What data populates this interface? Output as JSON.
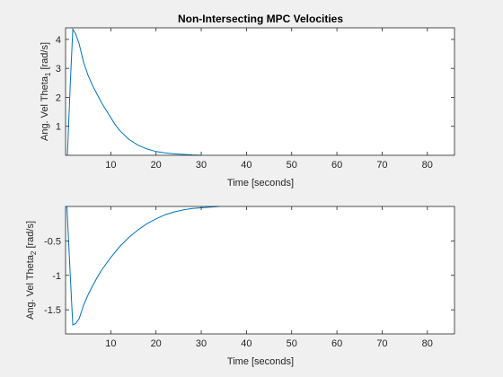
{
  "figure": {
    "background": "#f0f0f0",
    "axes_background": "#ffffff",
    "axis_color": "#262626",
    "line_color": "#0072bd"
  },
  "chart_data": [
    {
      "type": "line",
      "title": "Non-Intersecting MPC Velocities",
      "ylabel_main": "Ang. Vel Theta",
      "ylabel_sub": "1",
      "ylabel_unit": " [rad/s]",
      "xlabel": "Time [seconds]",
      "xlim": [
        0,
        86
      ],
      "ylim": [
        0,
        4.4
      ],
      "xticks": [
        10,
        20,
        30,
        40,
        50,
        60,
        70,
        80
      ],
      "xtick_labels": [
        "10",
        "20",
        "30",
        "40",
        "50",
        "60",
        "70",
        "80"
      ],
      "yticks": [
        1,
        2,
        3,
        4
      ],
      "ytick_labels": [
        "1",
        "2",
        "3",
        "4"
      ],
      "grid": false,
      "series": [
        {
          "color": "#0072bd",
          "x": [
            0.4,
            1.0,
            1.6,
            2.2,
            3.0,
            4.0,
            5.0,
            6.0,
            7.0,
            8.0,
            9.0,
            10.0,
            11.0,
            12.0,
            14.0,
            16.0,
            18.0,
            20.0,
            22.0,
            24.0,
            26.0,
            28.0,
            30.0
          ],
          "y": [
            0.0,
            2.3,
            4.35,
            4.2,
            3.85,
            3.2,
            2.75,
            2.4,
            2.1,
            1.8,
            1.55,
            1.3,
            1.05,
            0.85,
            0.55,
            0.35,
            0.22,
            0.13,
            0.08,
            0.05,
            0.03,
            0.01,
            0.0
          ]
        }
      ]
    },
    {
      "type": "line",
      "title": "",
      "ylabel_main": "Ang. Vel Theta",
      "ylabel_sub": "2",
      "ylabel_unit": " [rad/s]",
      "xlabel": "Time [seconds]",
      "xlim": [
        0,
        86
      ],
      "ylim": [
        -1.85,
        0
      ],
      "xticks": [
        10,
        20,
        30,
        40,
        50,
        60,
        70,
        80
      ],
      "xtick_labels": [
        "10",
        "20",
        "30",
        "40",
        "50",
        "60",
        "70",
        "80"
      ],
      "yticks": [
        -1.5,
        -1,
        -0.5
      ],
      "ytick_labels": [
        "-1.5",
        "-1",
        "-0.5"
      ],
      "grid": false,
      "series": [
        {
          "color": "#0072bd",
          "x": [
            0.3,
            1.0,
            1.6,
            2.2,
            3.0,
            4.0,
            5.0,
            6.0,
            7.0,
            8.0,
            10.0,
            12.0,
            14.0,
            16.0,
            18.0,
            20.0,
            22.0,
            24.0,
            26.0,
            28.0,
            30.0,
            32.0,
            34.0
          ],
          "y": [
            0.0,
            -0.95,
            -1.72,
            -1.7,
            -1.63,
            -1.43,
            -1.28,
            -1.15,
            -1.03,
            -0.92,
            -0.74,
            -0.58,
            -0.45,
            -0.34,
            -0.25,
            -0.18,
            -0.12,
            -0.08,
            -0.05,
            -0.03,
            -0.02,
            -0.01,
            0.0
          ]
        }
      ]
    }
  ]
}
